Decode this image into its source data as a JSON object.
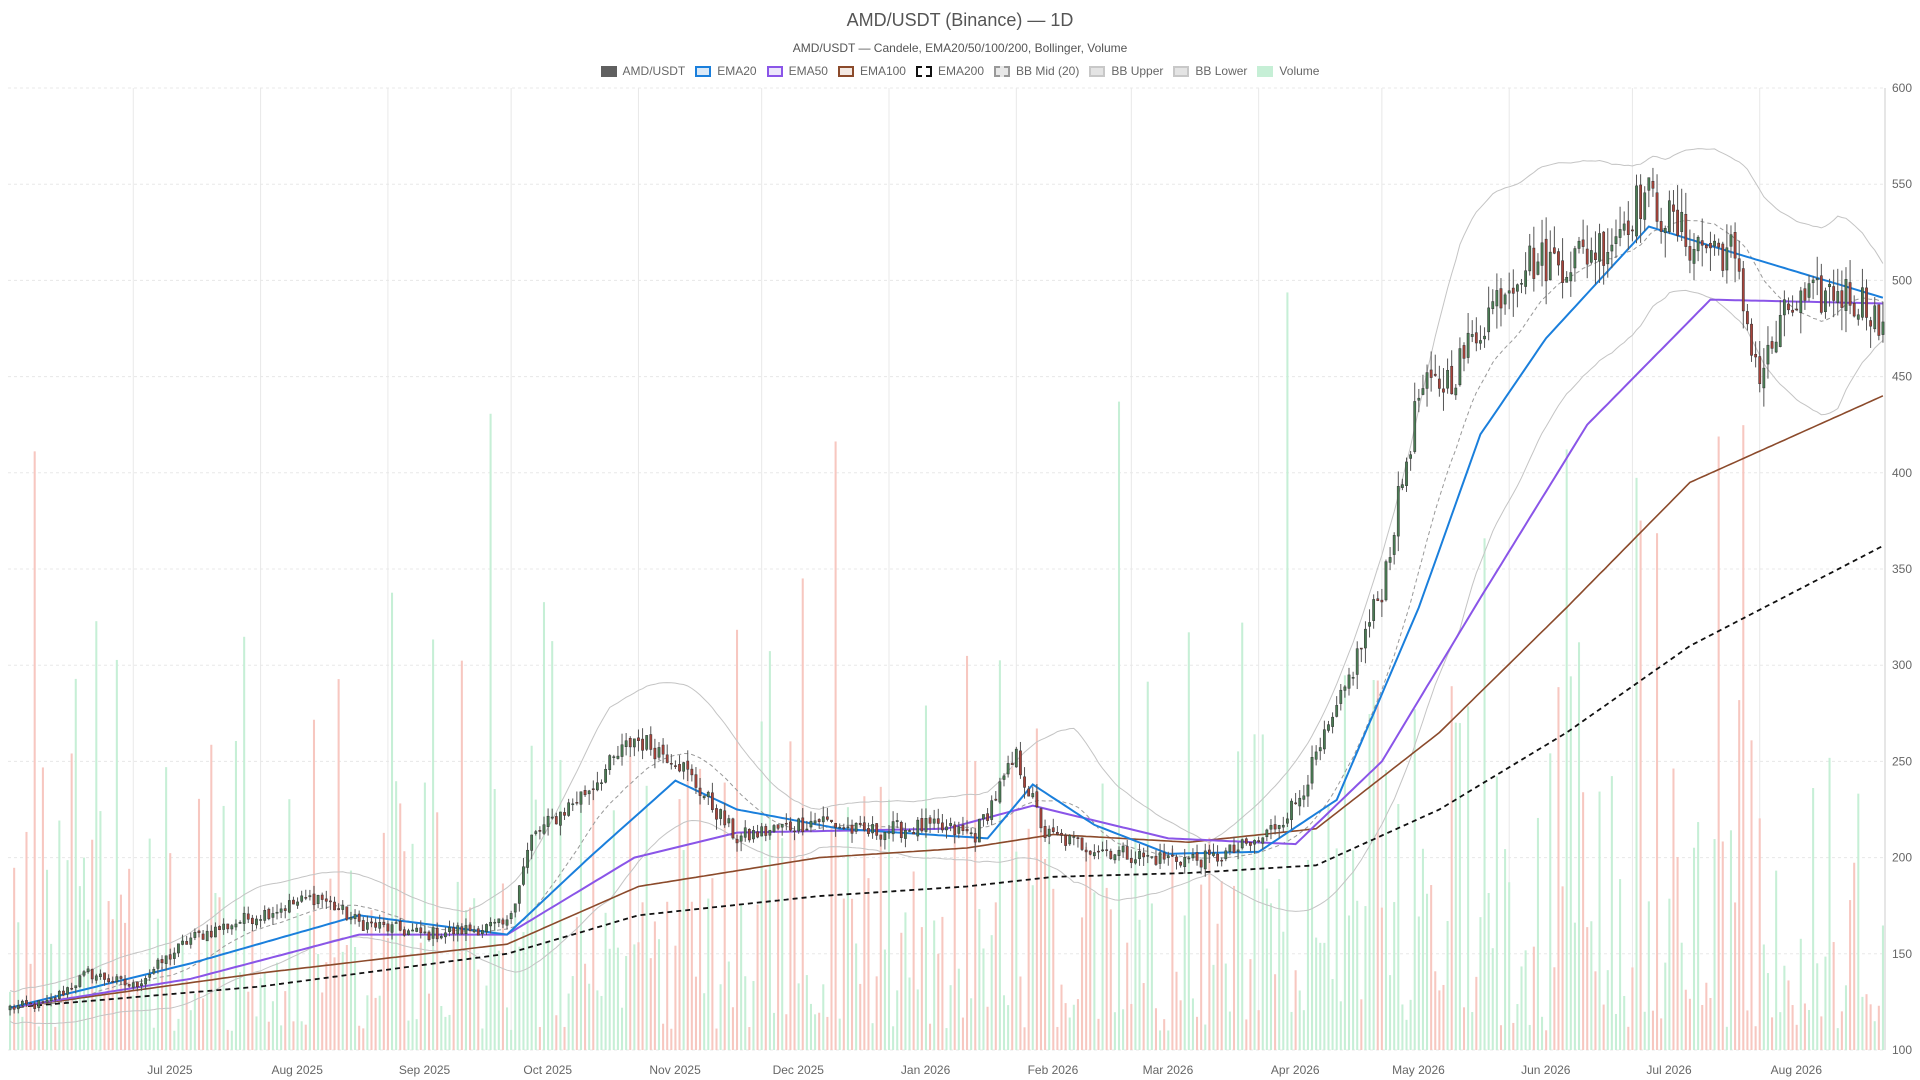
{
  "header": {
    "title": "AMD/USDT (Binance) — 1D",
    "subtitle": "AMD/USDT — Candele, EMA20/50/100/200, Bollinger, Volume"
  },
  "legend": [
    {
      "key": "candles",
      "label": "AMD/USDT",
      "fill": "#606060",
      "border": "#606060",
      "dash": false
    },
    {
      "key": "ema20",
      "label": "EMA20",
      "fill": "#dbe9f7",
      "border": "#1a7fdc",
      "dash": false
    },
    {
      "key": "ema50",
      "label": "EMA50",
      "fill": "#ece6fb",
      "border": "#8a55e8",
      "dash": false
    },
    {
      "key": "ema100",
      "label": "EMA100",
      "fill": "#f3e9e3",
      "border": "#8b4a2b",
      "dash": false
    },
    {
      "key": "ema200",
      "label": "EMA200",
      "fill": "#ffffff",
      "border": "#111111",
      "dash": true
    },
    {
      "key": "bbmid",
      "label": "BB Mid (20)",
      "fill": "#e8e8e8",
      "border": "#999999",
      "dash": true
    },
    {
      "key": "bbupper",
      "label": "BB Upper",
      "fill": "#e4e4e4",
      "border": "#c8c8c8",
      "dash": false
    },
    {
      "key": "bblower",
      "label": "BB Lower",
      "fill": "#e4e4e4",
      "border": "#c8c8c8",
      "dash": false
    },
    {
      "key": "volume",
      "label": "Volume",
      "fill": "#c6efd6",
      "border": "#c6efd6",
      "dash": false
    }
  ],
  "colors": {
    "up": "#4a7d54",
    "down": "#a8433a",
    "vol_up": "#c6efd6",
    "vol_down": "#f7c7c0",
    "grid": "#e8e8e8"
  },
  "chart_data": {
    "type": "candlestick",
    "timeframe": "1D",
    "x_range": [
      "2025-06-01",
      "2026-08-31"
    ],
    "ylim": [
      100,
      600
    ],
    "yticks": [
      100,
      150,
      200,
      250,
      300,
      350,
      400,
      450,
      500,
      550,
      600
    ],
    "xticks": [
      "Jul 2025",
      "Aug 2025",
      "Sep 2025",
      "Oct 2025",
      "Nov 2025",
      "Dec 2025",
      "Jan 2026",
      "Feb 2026",
      "Mar 2026",
      "Apr 2026",
      "May 2026",
      "Jun 2026",
      "Jul 2026",
      "Aug 2026"
    ],
    "price_anchors": [
      [
        "2025-06-01",
        122
      ],
      [
        "2025-06-10",
        124
      ],
      [
        "2025-06-20",
        140
      ],
      [
        "2025-07-01",
        133
      ],
      [
        "2025-07-15",
        158
      ],
      [
        "2025-07-31",
        170
      ],
      [
        "2025-08-15",
        180
      ],
      [
        "2025-08-25",
        166
      ],
      [
        "2025-09-10",
        160
      ],
      [
        "2025-09-30",
        165
      ],
      [
        "2025-10-06",
        210
      ],
      [
        "2025-10-20",
        236
      ],
      [
        "2025-10-31",
        262
      ],
      [
        "2025-11-10",
        252
      ],
      [
        "2025-11-25",
        210
      ],
      [
        "2025-12-15",
        220
      ],
      [
        "2025-12-25",
        213
      ],
      [
        "2026-01-10",
        216
      ],
      [
        "2026-01-22",
        212
      ],
      [
        "2026-02-01",
        252
      ],
      [
        "2026-02-08",
        212
      ],
      [
        "2026-02-20",
        205
      ],
      [
        "2026-03-05",
        200
      ],
      [
        "2026-03-20",
        199
      ],
      [
        "2026-04-01",
        208
      ],
      [
        "2026-04-10",
        228
      ],
      [
        "2026-04-20",
        275
      ],
      [
        "2026-05-01",
        340
      ],
      [
        "2026-05-10",
        440
      ],
      [
        "2026-05-18",
        450
      ],
      [
        "2026-05-30",
        495
      ],
      [
        "2026-06-05",
        510
      ],
      [
        "2026-06-15",
        510
      ],
      [
        "2026-06-25",
        520
      ],
      [
        "2026-07-04",
        545
      ],
      [
        "2026-07-15",
        520
      ],
      [
        "2026-07-25",
        515
      ],
      [
        "2026-08-01",
        450
      ],
      [
        "2026-08-08",
        485
      ],
      [
        "2026-08-20",
        495
      ],
      [
        "2026-08-28",
        487
      ],
      [
        "2026-08-31",
        470
      ]
    ],
    "ema_anchors": {
      "ema20": [
        [
          "2025-06-01",
          122
        ],
        [
          "2025-07-15",
          145
        ],
        [
          "2025-08-25",
          170
        ],
        [
          "2025-09-30",
          160
        ],
        [
          "2025-10-20",
          200
        ],
        [
          "2025-11-10",
          240
        ],
        [
          "2025-11-25",
          225
        ],
        [
          "2025-12-20",
          215
        ],
        [
          "2026-01-25",
          210
        ],
        [
          "2026-02-05",
          238
        ],
        [
          "2026-02-20",
          217
        ],
        [
          "2026-03-10",
          202
        ],
        [
          "2026-04-01",
          203
        ],
        [
          "2026-04-20",
          230
        ],
        [
          "2026-05-10",
          330
        ],
        [
          "2026-05-25",
          420
        ],
        [
          "2026-06-10",
          470
        ],
        [
          "2026-07-05",
          528
        ],
        [
          "2026-07-20",
          518
        ],
        [
          "2026-08-31",
          491
        ]
      ],
      "ema50": [
        [
          "2025-06-01",
          122
        ],
        [
          "2025-07-15",
          137
        ],
        [
          "2025-08-25",
          160
        ],
        [
          "2025-09-30",
          160
        ],
        [
          "2025-10-31",
          200
        ],
        [
          "2025-11-25",
          213
        ],
        [
          "2026-01-15",
          215
        ],
        [
          "2026-02-05",
          227
        ],
        [
          "2026-03-10",
          210
        ],
        [
          "2026-04-10",
          207
        ],
        [
          "2026-05-01",
          250
        ],
        [
          "2026-05-25",
          335
        ],
        [
          "2026-06-20",
          425
        ],
        [
          "2026-07-20",
          490
        ],
        [
          "2026-08-31",
          488
        ]
      ],
      "ema100": [
        [
          "2025-06-01",
          122
        ],
        [
          "2025-08-01",
          140
        ],
        [
          "2025-09-30",
          155
        ],
        [
          "2025-11-01",
          185
        ],
        [
          "2025-12-15",
          200
        ],
        [
          "2026-01-20",
          205
        ],
        [
          "2026-02-10",
          212
        ],
        [
          "2026-03-15",
          208
        ],
        [
          "2026-04-15",
          215
        ],
        [
          "2026-05-15",
          265
        ],
        [
          "2026-06-15",
          330
        ],
        [
          "2026-07-15",
          395
        ],
        [
          "2026-08-31",
          440
        ]
      ],
      "ema200": [
        [
          "2025-06-01",
          122
        ],
        [
          "2025-08-01",
          133
        ],
        [
          "2025-09-30",
          150
        ],
        [
          "2025-11-01",
          170
        ],
        [
          "2025-12-15",
          180
        ],
        [
          "2026-01-20",
          185
        ],
        [
          "2026-02-10",
          190
        ],
        [
          "2026-03-15",
          192
        ],
        [
          "2026-04-15",
          196
        ],
        [
          "2026-05-15",
          225
        ],
        [
          "2026-06-15",
          265
        ],
        [
          "2026-07-15",
          310
        ],
        [
          "2026-08-31",
          362
        ]
      ]
    },
    "bollinger": {
      "period": 20,
      "width_anchors": [
        [
          "2025-06-01",
          8
        ],
        [
          "2025-08-01",
          22
        ],
        [
          "2025-09-20",
          10
        ],
        [
          "2025-10-25",
          50
        ],
        [
          "2025-12-15",
          10
        ],
        [
          "2026-01-25",
          18
        ],
        [
          "2026-02-15",
          40
        ],
        [
          "2026-03-20",
          8
        ],
        [
          "2026-05-01",
          70
        ],
        [
          "2026-05-20",
          100
        ],
        [
          "2026-06-15",
          60
        ],
        [
          "2026-07-10",
          35
        ],
        [
          "2026-08-20",
          50
        ],
        [
          "2026-08-31",
          20
        ]
      ]
    },
    "volume": {
      "baseline": 100,
      "max_display": 600,
      "range_note": "volume shown scaled to lower pane"
    }
  }
}
